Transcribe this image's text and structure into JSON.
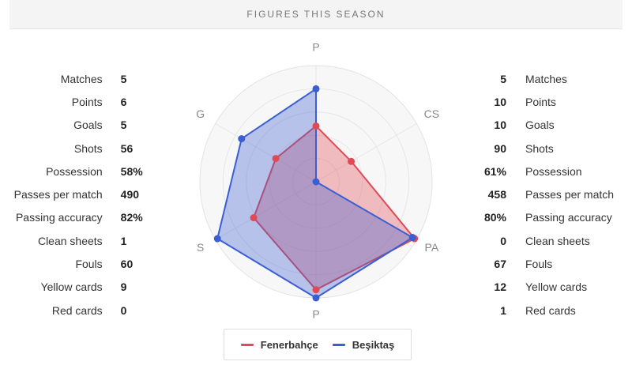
{
  "header": {
    "title": "FIGURES THIS SEASON"
  },
  "teams": [
    {
      "name": "Fenerbahçe",
      "color": "#e04a55"
    },
    {
      "name": "Beşiktaş",
      "color": "#3b5fd1"
    }
  ],
  "stat_labels": [
    "Matches",
    "Points",
    "Goals",
    "Shots",
    "Possession",
    "Passes per match",
    "Passing accuracy",
    "Clean sheets",
    "Fouls",
    "Yellow cards",
    "Red cards"
  ],
  "left_values": [
    "5",
    "6",
    "5",
    "56",
    "58%",
    "490",
    "82%",
    "1",
    "60",
    "9",
    "0"
  ],
  "right_values": [
    "5",
    "10",
    "10",
    "90",
    "61%",
    "458",
    "80%",
    "0",
    "67",
    "12",
    "1"
  ],
  "chart_data": {
    "type": "radar",
    "axes": [
      "P",
      "CS",
      "PA",
      "P",
      "S",
      "G"
    ],
    "scale": [
      0,
      1
    ],
    "grid_rings": 5,
    "series": [
      {
        "name": "Fenerbahçe",
        "color": "#e04a55",
        "values": [
          0.48,
          0.35,
          0.98,
          0.93,
          0.62,
          0.4
        ]
      },
      {
        "name": "Beşiktaş",
        "color": "#3b5fd1",
        "values": [
          0.8,
          0.0,
          0.96,
          1.0,
          0.98,
          0.74
        ]
      }
    ]
  }
}
